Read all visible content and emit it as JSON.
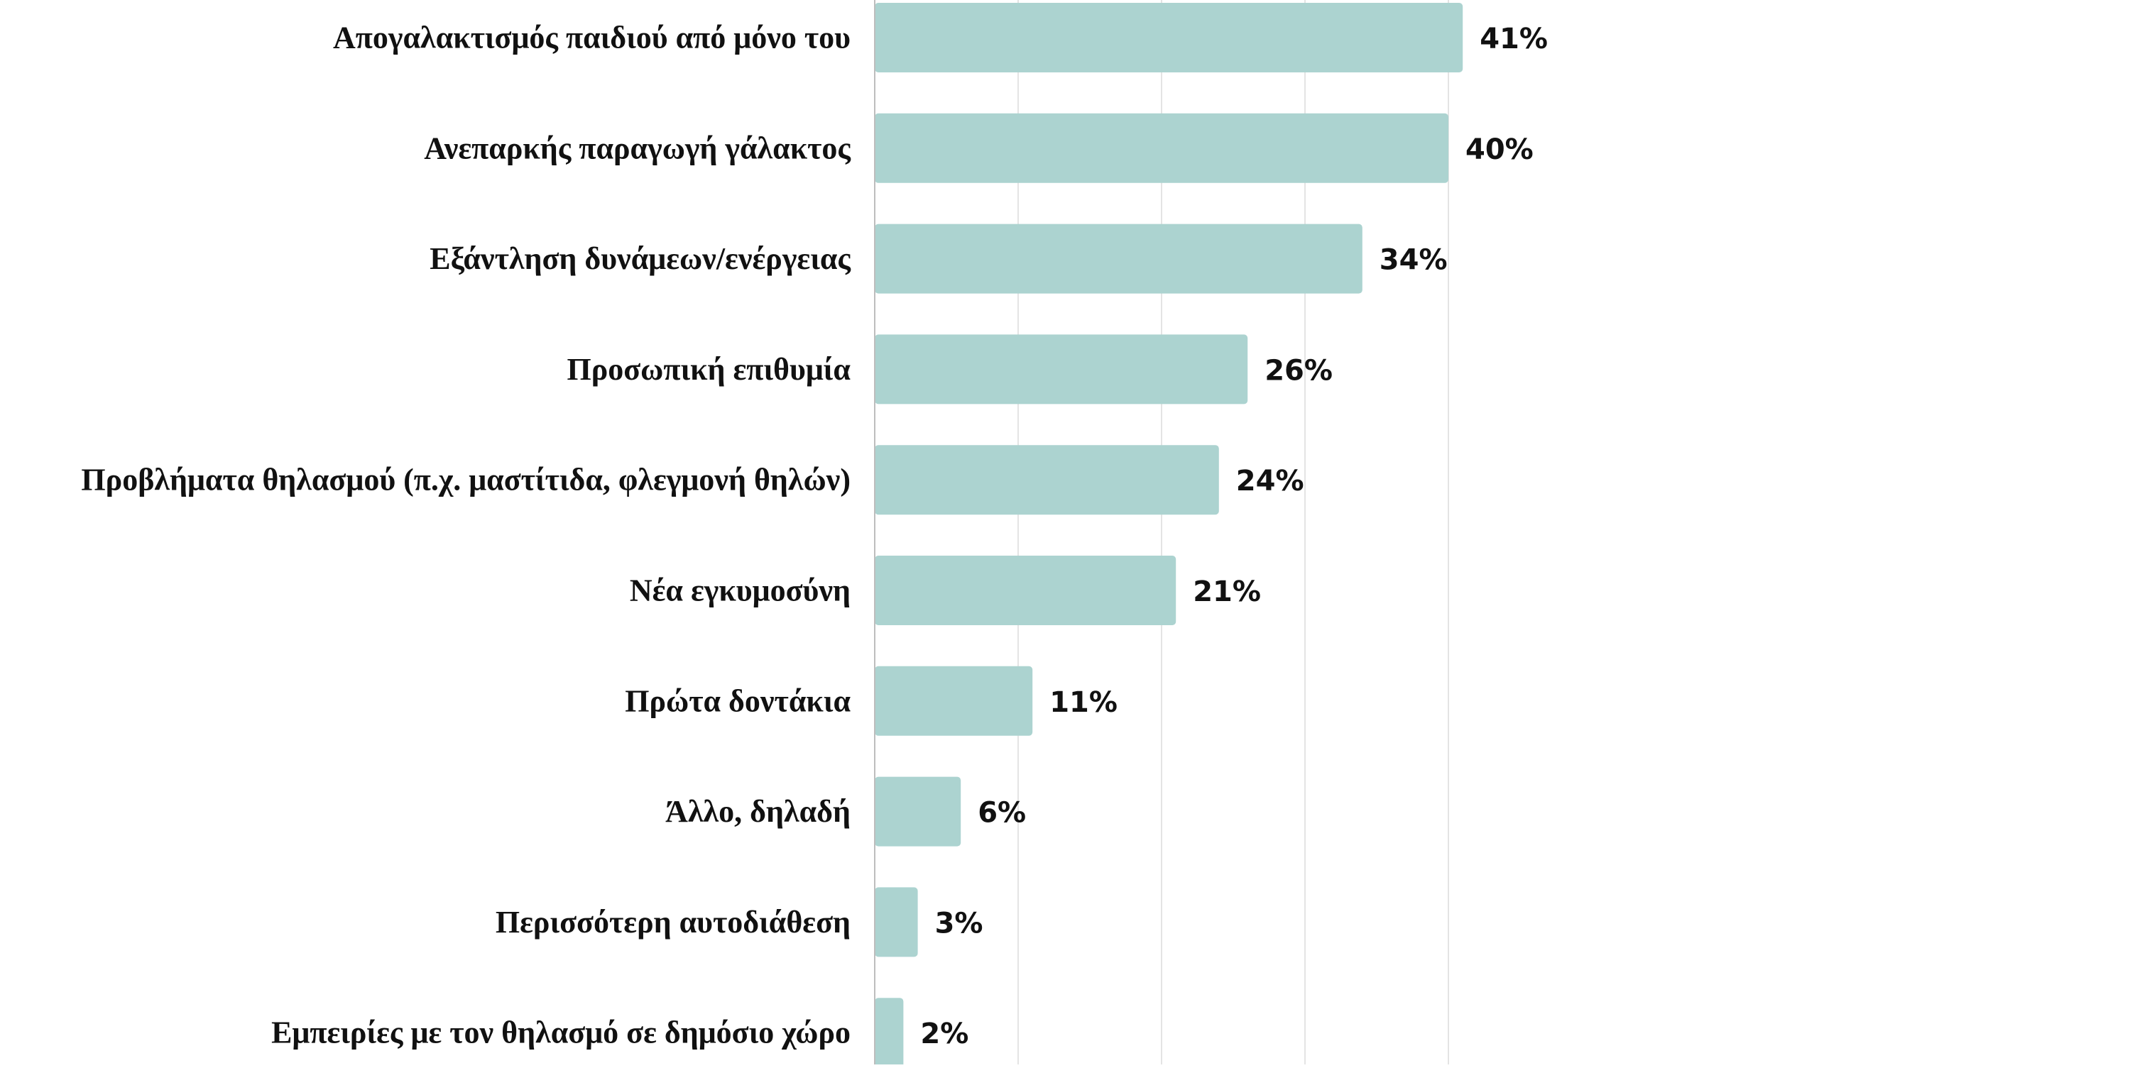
{
  "chart_data": {
    "type": "bar",
    "orientation": "horizontal",
    "categories": [
      "Απογαλακτισμός παιδιού από μόνο του",
      "Ανεπαρκής παραγωγή γάλακτος",
      "Εξάντληση δυνάμεων/ενέργειας",
      "Προσωπική επιθυμία",
      "Προβλήματα θηλασμού (π.χ. μαστίτιδα, φλεγμονή θηλών)",
      "Νέα εγκυμοσύνη",
      "Πρώτα δοντάκια",
      "Άλλο, δηλαδή",
      "Περισσότερη αυτοδιάθεση",
      "Εμπειρίες με τον θηλασμό σε δημόσιο χώρο"
    ],
    "values": [
      41,
      40,
      34,
      26,
      24,
      21,
      11,
      6,
      3,
      2
    ],
    "value_labels": [
      "41%",
      "40%",
      "34%",
      "26%",
      "24%",
      "21%",
      "11%",
      "6%",
      "3%",
      "2%"
    ],
    "xlim": [
      0,
      40
    ],
    "grid": true,
    "bar_color": "#acd3d0",
    "grid_color": "#e4e4e4",
    "axis_color": "#bdbdbd",
    "label_color": "#111111"
  }
}
